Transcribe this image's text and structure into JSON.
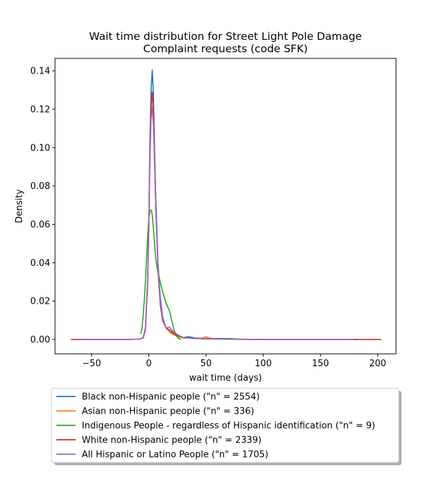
{
  "chart_data": {
    "type": "line",
    "title_lines": [
      "Wait time distribution  for Street Light Pole Damage",
      "Complaint requests (code SFK)"
    ],
    "xlabel": "wait time (days)",
    "ylabel": "Density",
    "xlim": [
      -82,
      216
    ],
    "ylim": [
      -0.0075,
      0.1465
    ],
    "xticks": [
      -50,
      0,
      50,
      100,
      150,
      200
    ],
    "xtick_labels": [
      "−50",
      "0",
      "50",
      "100",
      "150",
      "200"
    ],
    "yticks": [
      0.0,
      0.02,
      0.04,
      0.06,
      0.08,
      0.1,
      0.12,
      0.14
    ],
    "ytick_labels": [
      "0.00",
      "0.02",
      "0.04",
      "0.06",
      "0.08",
      "0.10",
      "0.12",
      "0.14"
    ],
    "grid": false,
    "legend_position": "below plot",
    "series": [
      {
        "name": "Black non-Hispanic people (\"n\" = 2554)",
        "color": "#1f77b4",
        "x": [
          -60,
          -20,
          -8,
          -5,
          -3,
          -1,
          0,
          1,
          2,
          3,
          4,
          5,
          6,
          8,
          10,
          12,
          15,
          18,
          20,
          25,
          30,
          35,
          40,
          50,
          60,
          70,
          80,
          100,
          150,
          182
        ],
        "y": [
          0.0,
          0.0,
          0.0002,
          0.0008,
          0.005,
          0.03,
          0.06,
          0.105,
          0.13,
          0.1405,
          0.128,
          0.1,
          0.075,
          0.04,
          0.022,
          0.012,
          0.006,
          0.004,
          0.0035,
          0.002,
          0.001,
          0.0015,
          0.0008,
          0.0005,
          0.0005,
          0.0005,
          0.0002,
          0.0,
          0.0,
          0.0
        ]
      },
      {
        "name": "Asian non-Hispanic people (\"n\" = 336)",
        "color": "#ff7f0e",
        "x": [
          -60,
          -20,
          -8,
          -5,
          -3,
          -1,
          0,
          1,
          2,
          3,
          4,
          5,
          6,
          8,
          10,
          12,
          15,
          18,
          20,
          25,
          30,
          40,
          45,
          48,
          50,
          52,
          55,
          60,
          70,
          80,
          100,
          150,
          175
        ],
        "y": [
          0.0,
          0.0,
          0.0002,
          0.0008,
          0.005,
          0.03,
          0.06,
          0.1,
          0.122,
          0.129,
          0.118,
          0.095,
          0.07,
          0.038,
          0.02,
          0.011,
          0.006,
          0.004,
          0.003,
          0.0015,
          0.0008,
          0.0005,
          0.0005,
          0.001,
          0.0015,
          0.001,
          0.0005,
          0.0003,
          0.0002,
          0.0001,
          0.0,
          0.0,
          0.0
        ]
      },
      {
        "name": "Indigenous People - regardless of Hispanic identification (\"n\" = 9)",
        "color": "#2ca02c",
        "x": [
          -7,
          -6,
          -5,
          -4,
          -3,
          -2,
          -1,
          0,
          1,
          2,
          3,
          4,
          5,
          6,
          8,
          10,
          12,
          15,
          18,
          20,
          22,
          25,
          28
        ],
        "y": [
          0.003,
          0.006,
          0.012,
          0.02,
          0.03,
          0.042,
          0.054,
          0.063,
          0.067,
          0.0675,
          0.065,
          0.058,
          0.05,
          0.042,
          0.035,
          0.03,
          0.025,
          0.019,
          0.015,
          0.01,
          0.005,
          0.001,
          0.0
        ]
      },
      {
        "name": "White non-Hispanic people (\"n\" = 2339)",
        "color": "#d62728",
        "x": [
          -68,
          -20,
          -8,
          -5,
          -3,
          -1,
          0,
          1,
          2,
          3,
          4,
          5,
          6,
          8,
          10,
          12,
          15,
          18,
          20,
          25,
          30,
          40,
          50,
          60,
          80,
          100,
          150,
          203
        ],
        "y": [
          0.0,
          0.0,
          0.0002,
          0.0008,
          0.005,
          0.03,
          0.06,
          0.1,
          0.122,
          0.129,
          0.118,
          0.095,
          0.07,
          0.036,
          0.018,
          0.01,
          0.006,
          0.005,
          0.004,
          0.002,
          0.001,
          0.0005,
          0.0005,
          0.0003,
          0.0001,
          0.0,
          0.0,
          0.0
        ]
      },
      {
        "name": "All Hispanic or Latino People (\"n\" = 1705)",
        "color": "#9467bd",
        "x": [
          -60,
          -20,
          -8,
          -5,
          -3,
          -1,
          0,
          1,
          2,
          3,
          4,
          5,
          6,
          8,
          10,
          12,
          15,
          18,
          20,
          25,
          30,
          40,
          50,
          60,
          80,
          100,
          150,
          180
        ],
        "y": [
          0.0,
          0.0,
          0.0002,
          0.0008,
          0.006,
          0.032,
          0.058,
          0.095,
          0.115,
          0.121,
          0.112,
          0.092,
          0.07,
          0.038,
          0.02,
          0.011,
          0.006,
          0.0065,
          0.005,
          0.0025,
          0.001,
          0.0005,
          0.0003,
          0.0002,
          0.0001,
          0.0,
          0.0,
          0.0
        ]
      }
    ]
  }
}
